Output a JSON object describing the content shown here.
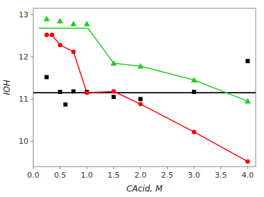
{
  "chart_data": {
    "type": "line",
    "x_label": "CAcid, M",
    "y_label": "IOH",
    "xlim": [
      0.0,
      4.15
    ],
    "ylim": [
      9.4,
      13.15
    ],
    "xticks": [
      {
        "value": 0.0,
        "label": "0.0"
      },
      0.5,
      {
        "value": 1.0,
        "label": "1.0"
      },
      1.5,
      {
        "value": 2.0,
        "label": "2.0"
      },
      2.5,
      {
        "value": 3.0,
        "label": "3.0"
      },
      3.5,
      {
        "value": 4.0,
        "label": "4.0"
      }
    ],
    "yticks": [
      10,
      11,
      12,
      13
    ],
    "grid": false,
    "series": [
      {
        "type": "hline",
        "color": "#000000",
        "values": [
          11.15
        ]
      },
      {
        "type": "scatter",
        "color": "#000000",
        "marker": "square",
        "x": [
          0.25,
          0.5,
          0.6,
          0.75,
          1.0,
          1.5,
          2.0,
          3.0,
          4.0
        ],
        "values": [
          11.52,
          11.17,
          10.87,
          11.18,
          11.17,
          11.05,
          11.0,
          11.17,
          11.9
        ]
      },
      {
        "type": "line",
        "color": "#22cc22",
        "x": [
          0.1,
          1.0,
          1.02,
          1.5,
          2.0,
          3.0,
          4.0
        ],
        "values": [
          12.68,
          12.68,
          12.68,
          11.85,
          11.78,
          11.45,
          10.95
        ]
      },
      {
        "type": "scatter",
        "color": "#22cc22",
        "marker": "triangle",
        "x": [
          0.25,
          0.5,
          0.75,
          1.0,
          1.5,
          2.0,
          3.0,
          4.0
        ],
        "values": [
          12.9,
          12.85,
          12.78,
          12.78,
          11.85,
          11.78,
          11.45,
          10.95
        ]
      },
      {
        "type": "line",
        "color": "#ff0000",
        "marker": "circle",
        "x": [
          0.25,
          0.35,
          0.5,
          0.75,
          1.0,
          1.5,
          2.0,
          3.0,
          4.0
        ],
        "values": [
          12.52,
          12.52,
          12.28,
          12.12,
          11.15,
          11.18,
          10.88,
          10.22,
          9.52
        ]
      }
    ]
  }
}
